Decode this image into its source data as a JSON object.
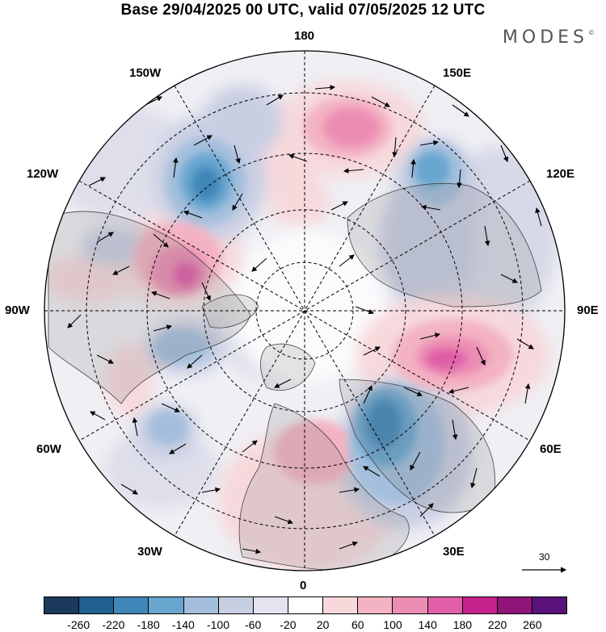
{
  "header": {
    "title": "Base 29/04/2025 00 UTC, valid 07/05/2025 12 UTC",
    "brand": "MODES"
  },
  "map": {
    "projection": "north-polar-stereographic",
    "longitude_labels": {
      "top": "180",
      "bottom": "0",
      "left": "90W",
      "right": "90E",
      "upper_left": "150W",
      "upper_right": "150E",
      "mid_upper_left": "120W",
      "mid_upper_right": "120E",
      "lower_left": "60W",
      "lower_right": "60E",
      "bottom_left": "30W",
      "bottom_right": "30E"
    },
    "vector_key": {
      "label": "30"
    }
  },
  "colorbar": {
    "colors": [
      "#1b3a5c",
      "#215f8e",
      "#3f87b9",
      "#69a6cf",
      "#a4bfdd",
      "#c9cfe3",
      "#e5e3ef",
      "#ffffff",
      "#f7d9dc",
      "#f3b3c2",
      "#ec8eb4",
      "#e05fa8",
      "#c4238c",
      "#8e1478",
      "#58127a"
    ],
    "labels": [
      "-260",
      "-220",
      "-180",
      "-140",
      "-100",
      "-60",
      "-20",
      "20",
      "60",
      "100",
      "140",
      "180",
      "220",
      "260"
    ]
  }
}
